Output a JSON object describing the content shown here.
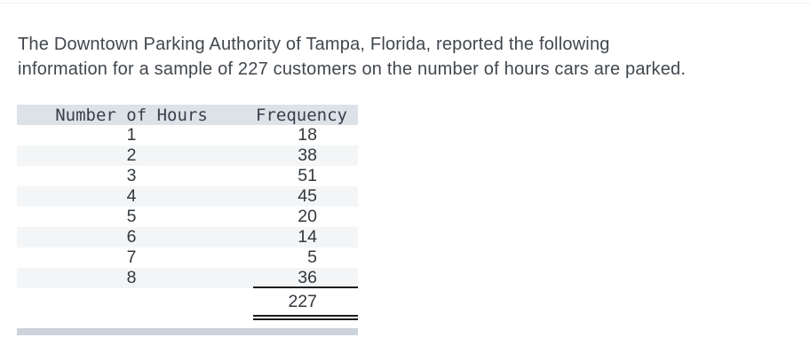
{
  "intro": {
    "text": "The Downtown Parking Authority of Tampa, Florida, reported the following information for a sample of 227 customers on the number of hours cars are parked.",
    "lines": [
      "The Downtown Parking Authority of Tampa, Florida, reported the following",
      "information for a sample of 227 customers on the number of hours cars are parked."
    ]
  },
  "table": {
    "headers": [
      "Number of Hours",
      "Frequency"
    ],
    "rows": [
      {
        "hours": "1",
        "frequency": "18"
      },
      {
        "hours": "2",
        "frequency": "38"
      },
      {
        "hours": "3",
        "frequency": "51"
      },
      {
        "hours": "4",
        "frequency": "45"
      },
      {
        "hours": "5",
        "frequency": "20"
      },
      {
        "hours": "6",
        "frequency": "14"
      },
      {
        "hours": "7",
        "frequency": "5"
      },
      {
        "hours": "8",
        "frequency": "36"
      }
    ],
    "total": "227"
  },
  "colors": {
    "header_bg": "#dde2e9",
    "stripe_bg": "#f4f5f6",
    "bottom_bar": "#ccd3db",
    "text": "#41474d",
    "rule": "#1c1c1c"
  }
}
